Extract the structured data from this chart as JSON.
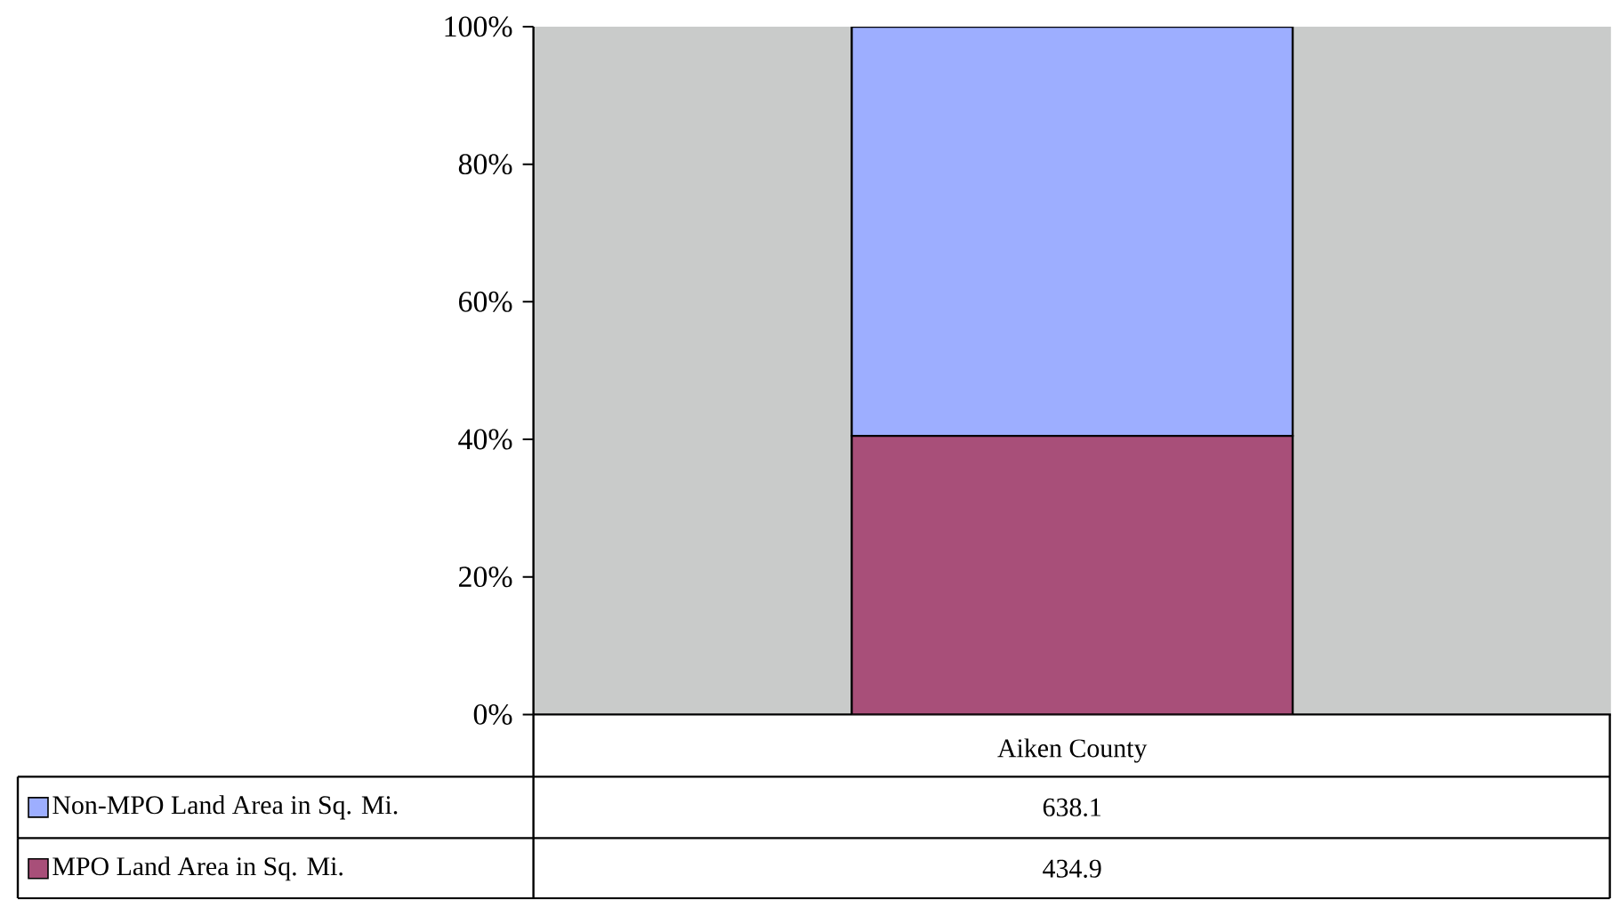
{
  "chart_data": {
    "type": "bar",
    "stacked": true,
    "categories": [
      "Aiken County"
    ],
    "series": [
      {
        "name": "MPO Land Area in Sq. Mi.",
        "color": "#a84f79",
        "values": [
          40.5
        ]
      },
      {
        "name": "Non-MPO Land Area in Sq. Mi.",
        "color": "#9daeff",
        "values": [
          59.5
        ]
      }
    ],
    "annotations": [
      "638.1",
      "434.9"
    ],
    "ylim": [
      0,
      100
    ],
    "yticks": [
      {
        "value": 0,
        "label": "0%"
      },
      {
        "value": 20,
        "label": "20%"
      },
      {
        "value": 40,
        "label": "40%"
      },
      {
        "value": 60,
        "label": "60%"
      },
      {
        "value": 80,
        "label": "80%"
      },
      {
        "value": 100,
        "label": "100%"
      }
    ],
    "grid": false,
    "legend": "bottom left"
  }
}
